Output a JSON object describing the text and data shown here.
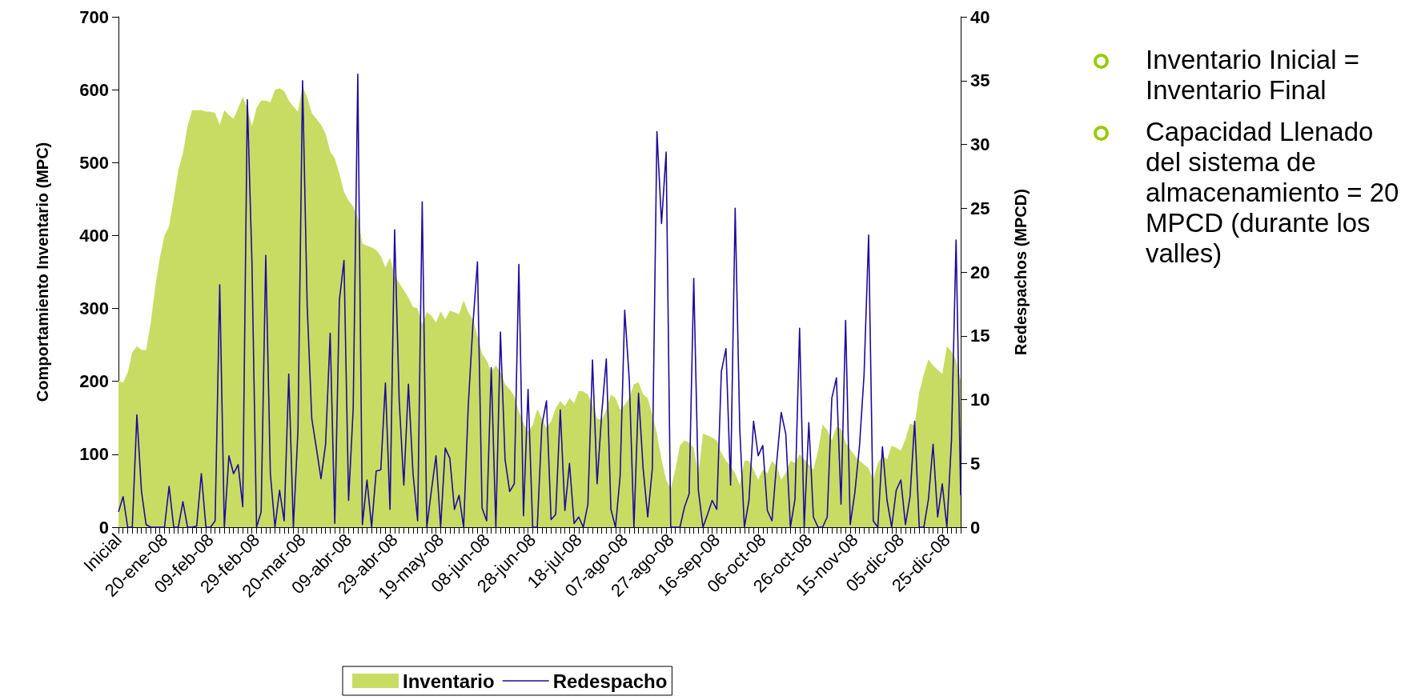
{
  "chart_data": {
    "type": "area",
    "categories": [
      "Inicial",
      null,
      null,
      null,
      null,
      null,
      null,
      null,
      null,
      null,
      "20-ene-08",
      null,
      null,
      null,
      null,
      null,
      null,
      null,
      null,
      null,
      "09-feb-08",
      null,
      null,
      null,
      null,
      null,
      null,
      null,
      null,
      null,
      "29-feb-08",
      null,
      null,
      null,
      null,
      null,
      null,
      null,
      null,
      null,
      "20-mar-08",
      null,
      null,
      null,
      null,
      null,
      null,
      null,
      null,
      null,
      "09-abr-08",
      null,
      null,
      null,
      null,
      null,
      null,
      null,
      null,
      null,
      "29-abr-08",
      null,
      null,
      null,
      null,
      null,
      null,
      null,
      null,
      null,
      "19-may-08",
      null,
      null,
      null,
      null,
      null,
      null,
      null,
      null,
      null,
      "08-jun-08",
      null,
      null,
      null,
      null,
      null,
      null,
      null,
      null,
      null,
      "28-jun-08",
      null,
      null,
      null,
      null,
      null,
      null,
      null,
      null,
      null,
      "18-jul-08",
      null,
      null,
      null,
      null,
      null,
      null,
      null,
      null,
      null,
      "07-ago-08",
      null,
      null,
      null,
      null,
      null,
      null,
      null,
      null,
      null,
      "27-ago-08",
      null,
      null,
      null,
      null,
      null,
      null,
      null,
      null,
      null,
      "16-sep-08",
      null,
      null,
      null,
      null,
      null,
      null,
      null,
      null,
      null,
      "06-oct-08",
      null,
      null,
      null,
      null,
      null,
      null,
      null,
      null,
      null,
      "26-oct-08",
      null,
      null,
      null,
      null,
      null,
      null,
      null,
      null,
      null,
      "15-nov-08",
      null,
      null,
      null,
      null,
      null,
      null,
      null,
      null,
      null,
      "05-dic-08",
      null,
      null,
      null,
      null,
      null,
      null,
      null,
      null,
      null,
      "25-dic-08",
      null,
      null,
      null
    ],
    "series": [
      {
        "name": "Inventario",
        "color": "#c8dc64",
        "values": [
          201,
          198,
          212,
          240,
          248,
          243,
          243,
          280,
          330,
          370,
          400,
          413,
          450,
          490,
          513,
          550,
          572,
          572,
          572,
          570,
          570,
          568,
          552,
          572,
          565,
          560,
          575,
          590,
          575,
          550,
          575,
          585,
          585,
          583,
          600,
          602,
          598,
          585,
          577,
          570,
          605,
          590,
          568,
          560,
          552,
          540,
          515,
          506,
          485,
          460,
          448,
          440,
          425,
          389,
          386,
          384,
          380,
          372,
          356,
          370,
          345,
          335,
          325,
          315,
          302,
          300,
          278,
          295,
          290,
          281,
          296,
          285,
          297,
          295,
          292,
          311,
          295,
          285,
          262,
          238,
          229,
          213,
          222,
          213,
          196,
          189,
          180,
          159,
          142,
          131,
          140,
          162,
          149,
          136,
          145,
          163,
          173,
          166,
          177,
          170,
          187,
          186,
          182,
          168,
          149,
          147,
          161,
          182,
          177,
          161,
          168,
          177,
          196,
          199,
          182,
          177,
          154,
          128,
          93,
          65,
          53,
          79,
          112,
          119,
          116,
          109,
          72,
          128,
          126,
          123,
          119,
          102,
          91,
          84,
          74,
          58,
          91,
          91,
          79,
          65,
          79,
          74,
          91,
          84,
          65,
          74,
          91,
          88,
          100,
          93,
          86,
          79,
          105,
          141,
          133,
          119,
          138,
          135,
          116,
          107,
          98,
          91,
          86,
          81,
          65,
          88,
          98,
          93,
          112,
          109,
          105,
          121,
          142,
          140,
          185,
          210,
          230,
          222,
          216,
          210,
          248,
          241,
          229,
          201
        ]
      },
      {
        "name": "Redespacho",
        "type": "line",
        "axis": "y2",
        "color": "#1e0a9c",
        "values": [
          1.2,
          2.4,
          0,
          0,
          8.8,
          2.8,
          0.2,
          0,
          0,
          0,
          0,
          3.2,
          0,
          0,
          2,
          0,
          0,
          0.1,
          4.2,
          0,
          0,
          0.5,
          19,
          0,
          5.6,
          4.2,
          4.9,
          1.6,
          33.5,
          20.8,
          0,
          1.2,
          21.3,
          4.2,
          0,
          2.9,
          0.5,
          12,
          0,
          7.6,
          35,
          17.4,
          8.5,
          6.2,
          3.8,
          6.5,
          15.2,
          0.3,
          17.8,
          20.9,
          2.1,
          9.3,
          35.5,
          0.2,
          3.7,
          0,
          4.4,
          4.5,
          11.3,
          1.4,
          23.3,
          9.9,
          3.3,
          11.2,
          4.2,
          0.5,
          25.5,
          0,
          2.9,
          5.6,
          0,
          6.2,
          5.4,
          1.4,
          2.5,
          0,
          9.5,
          15.8,
          20.8,
          1.5,
          0.5,
          12.5,
          0,
          15.3,
          5.3,
          2.8,
          3.4,
          20.6,
          0.9,
          10.8,
          0,
          0,
          8,
          9.9,
          0.6,
          1,
          9.2,
          1.3,
          5,
          0.3,
          0.8,
          0,
          1.8,
          13.1,
          3.4,
          8.9,
          13.2,
          1.4,
          0,
          4,
          17,
          11.5,
          0,
          10.5,
          4.6,
          0.8,
          4.6,
          31,
          23.8,
          29.4,
          0,
          0,
          0,
          1.6,
          2.6,
          19.5,
          2.9,
          0,
          1,
          2.1,
          1.4,
          12.2,
          14,
          3.3,
          25,
          7.7,
          0,
          2.1,
          8.3,
          5.6,
          6.4,
          1.3,
          0.5,
          5,
          9,
          7.3,
          0,
          2.2,
          15.6,
          0,
          8.2,
          0.8,
          0,
          0,
          0.8,
          10.1,
          11.7,
          1.8,
          16.2,
          0.2,
          2.7,
          6.3,
          11.9,
          22.9,
          0.5,
          0,
          6.3,
          2.1,
          0,
          2.9,
          3.7,
          0.2,
          2.4,
          8.3,
          0,
          0,
          2.2,
          6.5,
          0.8,
          3.4,
          0,
          6.8,
          22.5,
          2.5
        ]
      }
    ],
    "ylabel": "Comportamiento Inventario (MPC)",
    "y2label": "Redespachos (MPCD)",
    "ylim": [
      0,
      700
    ],
    "yticks": [
      0,
      100,
      200,
      300,
      400,
      500,
      600,
      700
    ],
    "y2lim": [
      0,
      40
    ],
    "y2ticks": [
      0,
      5,
      10,
      15,
      20,
      25,
      30,
      35,
      40
    ],
    "legend": "bottom",
    "marker": "none",
    "annotations": [
      "Inventario Inicial = Inventario Final",
      "Capacidad Llenado del sistema de almacenamiento = 20 MPCD (durante los valles)"
    ]
  }
}
